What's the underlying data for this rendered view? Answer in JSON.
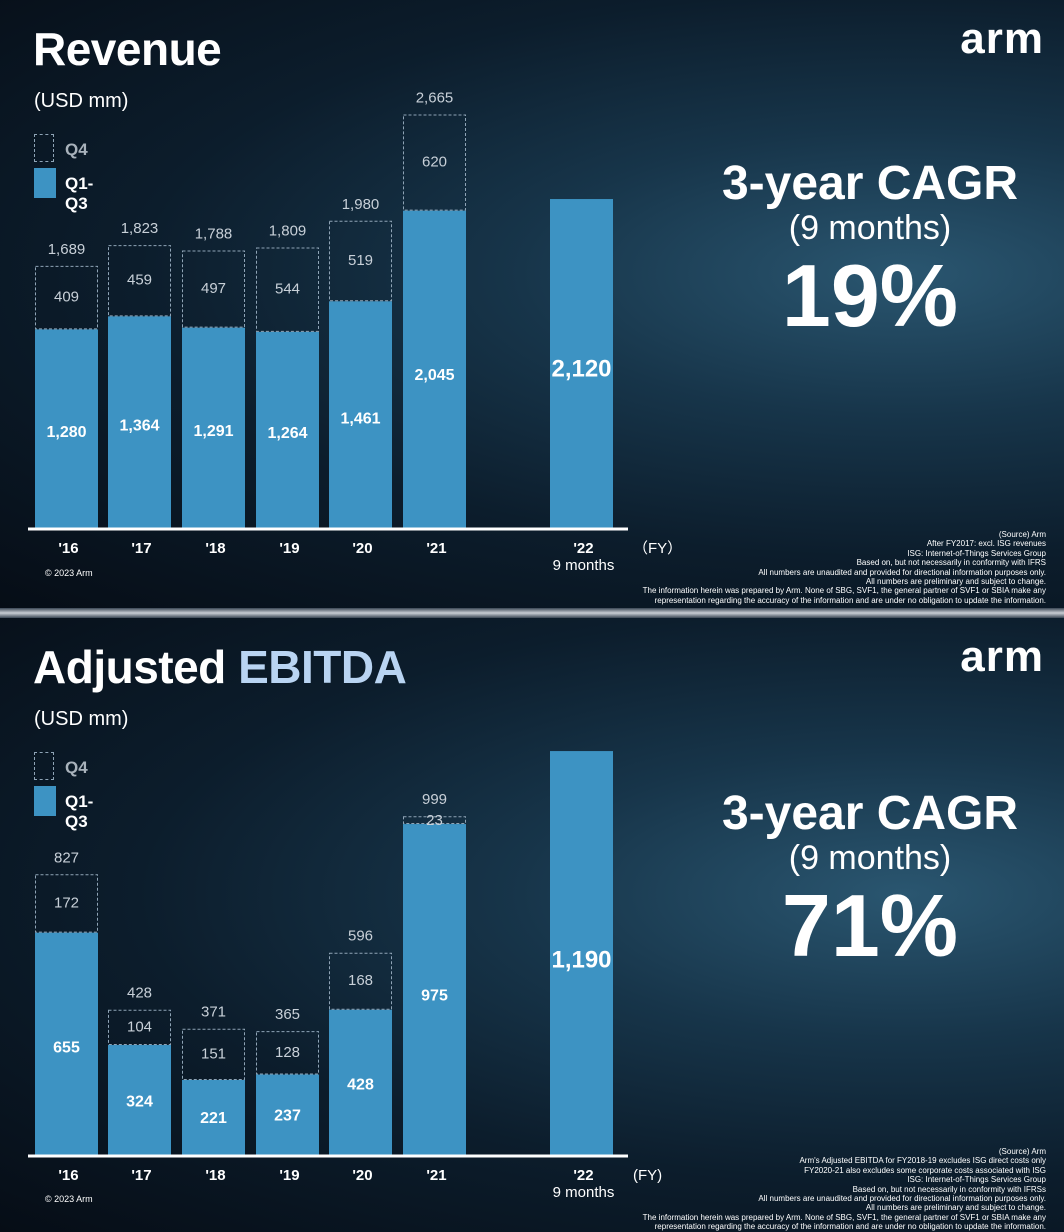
{
  "brand": "arm",
  "colors": {
    "q1q3": "#3d93c3",
    "q4_border": "#8fa4b6",
    "title_highlight": "#b9d4f2"
  },
  "chart_data": [
    {
      "type": "bar",
      "title": "Revenue",
      "units": "(USD mm)",
      "legend": [
        "Q4",
        "Q1-Q3"
      ],
      "categories": [
        "'16",
        "'17",
        "'18",
        "'19",
        "'20",
        "'21",
        "'22"
      ],
      "category_sub": [
        "",
        "",
        "",
        "",
        "",
        "",
        "9 months"
      ],
      "x_unit": "（FY）",
      "series": [
        {
          "name": "Q1-Q3",
          "values": [
            1280,
            1364,
            1291,
            1264,
            1461,
            2045,
            2120
          ]
        },
        {
          "name": "Q4",
          "values": [
            409,
            459,
            497,
            544,
            519,
            620,
            null
          ]
        }
      ],
      "totals": [
        1689,
        1823,
        1788,
        1809,
        1980,
        2665,
        null
      ],
      "label_q13": [
        "1,280",
        "1,364",
        "1,291",
        "1,264",
        "1,461",
        "2,045",
        "2,120"
      ],
      "label_q4": [
        "409",
        "459",
        "497",
        "544",
        "519",
        "620",
        ""
      ],
      "label_total": [
        "1,689",
        "1,823",
        "1,788",
        "1,809",
        "1,980",
        "2,665",
        ""
      ],
      "ylim": [
        0,
        2900
      ],
      "cagr": {
        "line1": "3-year CAGR",
        "line2": "(9 months)",
        "value": "19%"
      },
      "copyright": "© 2023 Arm",
      "notes": [
        "(Source) Arm",
        "After FY2017: excl. ISG revenues",
        "ISG: Internet-of-Things Services Group",
        "Based on, but not necessarily in conformity with IFRS",
        "All numbers are unaudited and provided for directional information purposes only.",
        "All numbers are preliminary and subject to change.",
        "The information herein was prepared by Arm. None of SBG, SVF1, the general partner of SVF1 or SBIA make any",
        "representation regarding the accuracy of the information and are under no obligation to update the information."
      ]
    },
    {
      "type": "bar",
      "title": "Adjusted",
      "title_highlight": "EBITDA",
      "units": "(USD mm)",
      "legend": [
        "Q4",
        "Q1-Q3"
      ],
      "categories": [
        "'16",
        "'17",
        "'18",
        "'19",
        "'20",
        "'21",
        "'22"
      ],
      "category_sub": [
        "",
        "",
        "",
        "",
        "",
        "",
        "9 months"
      ],
      "x_unit": "(FY)",
      "series": [
        {
          "name": "Q1-Q3",
          "values": [
            655,
            324,
            221,
            237,
            428,
            975,
            1190
          ]
        },
        {
          "name": "Q4",
          "values": [
            172,
            104,
            151,
            128,
            168,
            23,
            null
          ]
        }
      ],
      "totals": [
        827,
        428,
        371,
        365,
        596,
        999,
        null
      ],
      "label_q13": [
        "655",
        "324",
        "221",
        "237",
        "428",
        "975",
        "1,190"
      ],
      "label_q4": [
        "172",
        "104",
        "151",
        "128",
        "168",
        "23",
        ""
      ],
      "label_total": [
        "827",
        "428",
        "371",
        "365",
        "596",
        "999",
        ""
      ],
      "ylim": [
        0,
        1420
      ],
      "cagr": {
        "line1": "3-year CAGR",
        "line2": "(9 months)",
        "value": "71%"
      },
      "copyright": "© 2023 Arm",
      "notes": [
        "(Source) Arm",
        "Arm's Adjusted EBITDA for FY2018-19 excludes ISG direct costs only",
        "FY2020-21 also excludes some corporate costs associated with ISG",
        "ISG: Internet-of-Things Services Group",
        "Based on, but not necessarily in conformity with IFRSs",
        "All numbers are unaudited and provided for directional information purposes only.",
        "All numbers are preliminary and subject to change.",
        "The information herein was prepared by Arm. None of SBG, SVF1, the general partner of SVF1 or SBIA make any",
        "representation regarding the accuracy of the information and are under no obligation to update the information."
      ]
    }
  ]
}
